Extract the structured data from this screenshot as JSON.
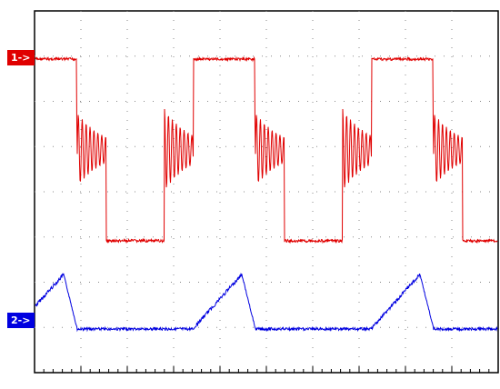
{
  "channels": [
    {
      "label": "1->"
    },
    {
      "label": "2->"
    }
  ]
}
